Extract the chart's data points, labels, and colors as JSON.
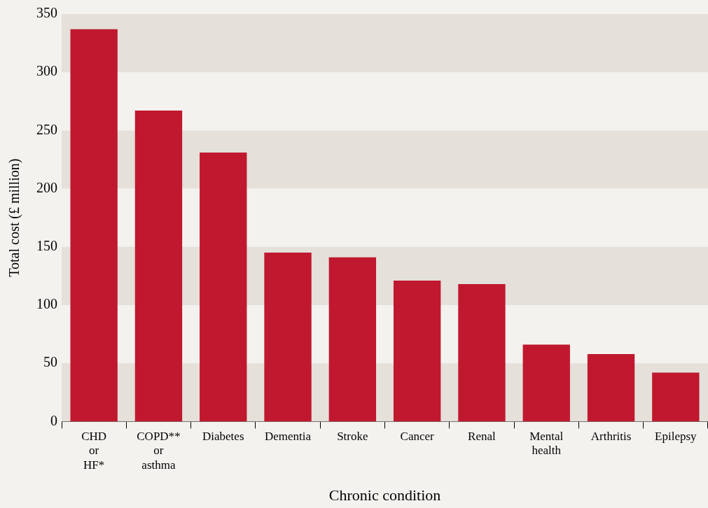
{
  "chart_data": {
    "type": "bar",
    "xlabel": "Chronic condition",
    "ylabel": "Total cost (£ million)",
    "categories": [
      "CHD or HF*",
      "COPD** or asthma",
      "Diabetes",
      "Dementia",
      "Stroke",
      "Cancer",
      "Renal",
      "Mental health",
      "Arthritis",
      "Epilepsy"
    ],
    "values": [
      337,
      267,
      231,
      145,
      141,
      121,
      118,
      66,
      58,
      42
    ],
    "color": "#c0192f",
    "ylim": [
      0,
      350
    ],
    "yticks": [
      0,
      50,
      100,
      150,
      200,
      250,
      300,
      350
    ],
    "grid": false,
    "legend": false,
    "bands": [
      {
        "axis": "y",
        "from": 0,
        "to": 50,
        "color": "#e5e0da"
      },
      {
        "axis": "y",
        "from": 100,
        "to": 150,
        "color": "#e5e0da"
      },
      {
        "axis": "y",
        "from": 200,
        "to": 250,
        "color": "#e5e0da"
      },
      {
        "axis": "y",
        "from": 300,
        "to": 350,
        "color": "#e5e0da"
      }
    ]
  }
}
